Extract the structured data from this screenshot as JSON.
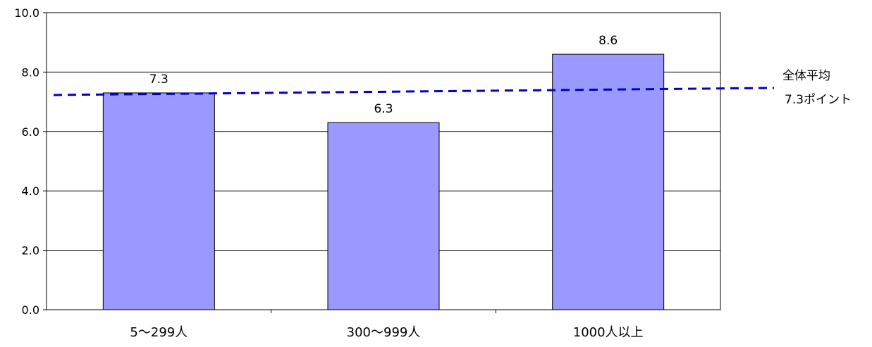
{
  "chart_data": {
    "type": "bar",
    "categories": [
      "5～299人",
      "300～999人",
      "1000人以上"
    ],
    "values": [
      7.3,
      6.3,
      8.6
    ],
    "value_labels": [
      "7.3",
      "6.3",
      "8.6"
    ],
    "title": "",
    "xlabel": "",
    "ylabel": "",
    "ylim": [
      0,
      10
    ],
    "yticks": [
      "0.0",
      "2.0",
      "4.0",
      "6.0",
      "8.0",
      "10.0"
    ],
    "grid": true,
    "legend": "none",
    "bar_color": "#9999ff",
    "reference_line": {
      "value": 7.3,
      "style": "dashed",
      "color": "#0000cc",
      "label_line1": "全体平均",
      "label_line2": "7.3ポイント"
    }
  }
}
